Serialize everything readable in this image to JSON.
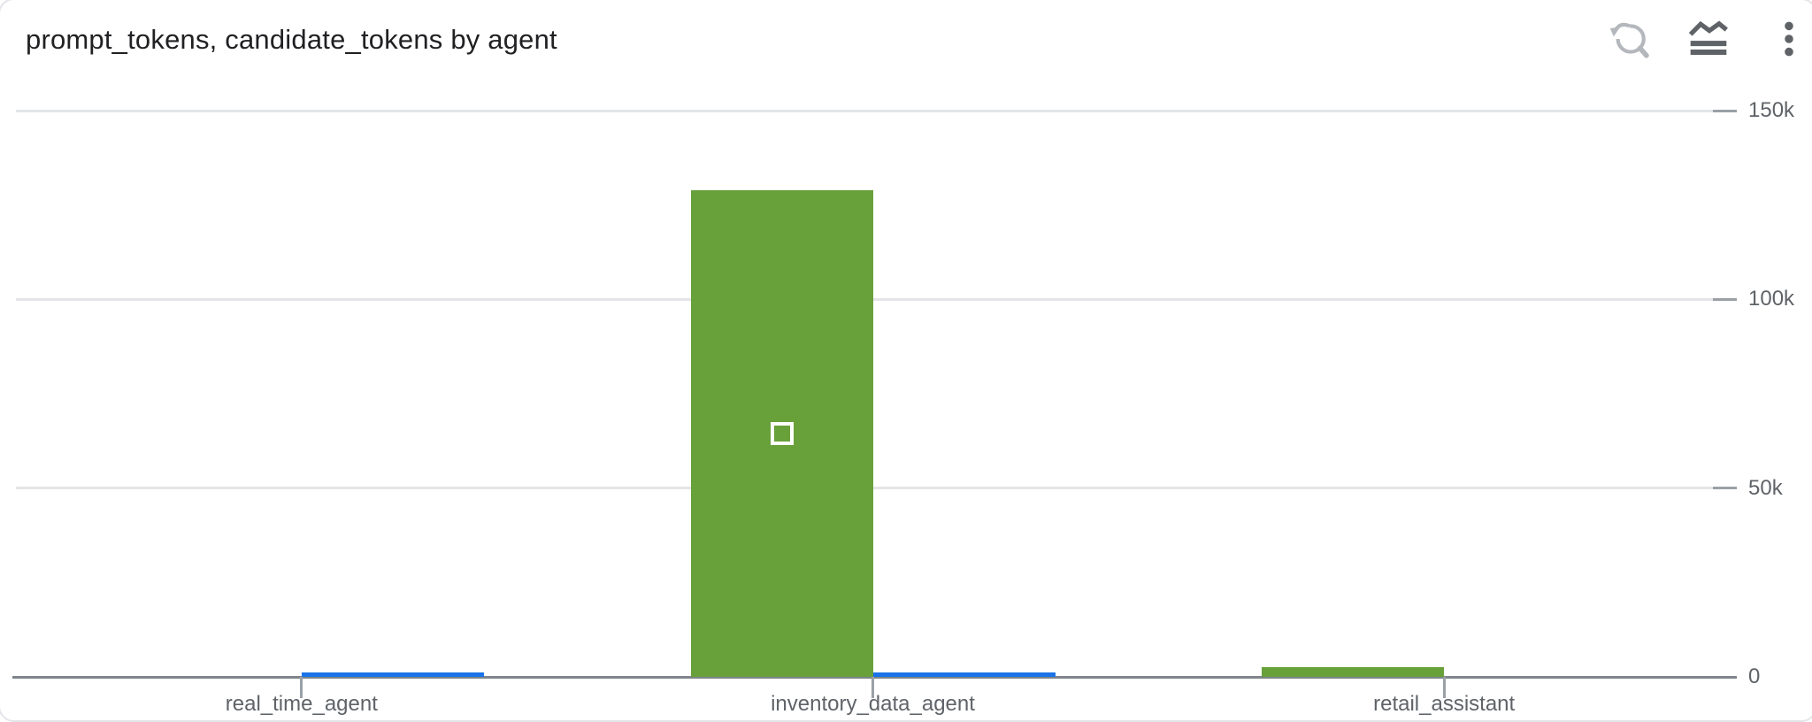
{
  "header": {
    "title": "prompt_tokens, candidate_tokens by agent",
    "toolbar": [
      {
        "name": "zoom-reset",
        "icon": "zoom-reset-icon",
        "color": "#b4b8bc"
      },
      {
        "name": "chart-type",
        "icon": "chart-type-icon",
        "color": "#5f6368"
      },
      {
        "name": "more-options",
        "icon": "kebab-menu-icon",
        "color": "#5f6368"
      }
    ]
  },
  "colors": {
    "title_text": "#212124",
    "axis_line": "#7f858a",
    "gridline": "#e4e5e8",
    "tick": "#9aa0a6",
    "label_text": "#5f6368",
    "series_green": "#68a03a",
    "series_blue": "#1a73e8",
    "marker": "#ffffff",
    "card_border": "#e4e5e9"
  },
  "chart_data": {
    "type": "bar",
    "bar_layout": "grouped",
    "title": "prompt_tokens, candidate_tokens by agent",
    "categories": [
      "real_time_agent",
      "inventory_data_agent",
      "retail_assistant"
    ],
    "series": [
      {
        "name": "prompt_tokens",
        "color": "#68a03a",
        "values": [
          0,
          129000,
          2500
        ]
      },
      {
        "name": "candidate_tokens",
        "color": "#1a73e8",
        "values": [
          1200,
          1100,
          0
        ]
      }
    ],
    "xlabel": "",
    "ylabel": "",
    "ylim": [
      0,
      150000
    ],
    "yticks": [
      {
        "value": 0,
        "label": "0"
      },
      {
        "value": 50000,
        "label": "50k"
      },
      {
        "value": 100000,
        "label": "100k"
      },
      {
        "value": 150000,
        "label": "150k"
      }
    ],
    "grid": true,
    "legend_position": "none",
    "y_axis_side": "right",
    "selection_marker": {
      "category": "inventory_data_agent",
      "series": "prompt_tokens",
      "position": "bar-center"
    }
  }
}
